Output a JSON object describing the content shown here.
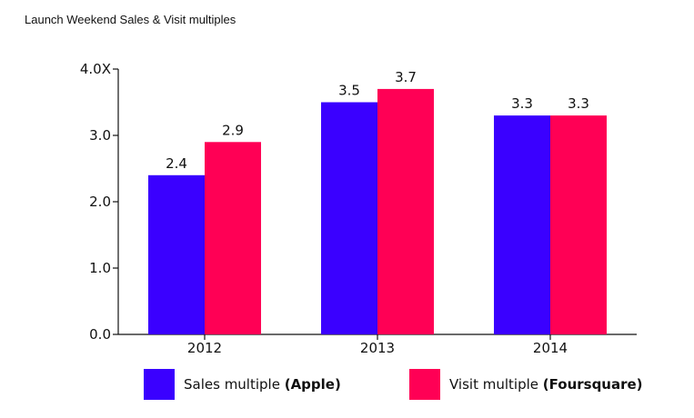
{
  "title": "Launch Weekend Sales & Visit multiples",
  "chart_data": {
    "type": "bar",
    "title": "Launch Weekend Sales & Visit multiples",
    "categories": [
      "2012",
      "2013",
      "2014"
    ],
    "series": [
      {
        "name": "Sales multiple (Apple)",
        "values": [
          2.4,
          3.5,
          3.3
        ],
        "color": "#3a00ff"
      },
      {
        "name": "Visit multiple (Foursquare)",
        "values": [
          2.9,
          3.7,
          3.3
        ],
        "color": "#ff0055"
      }
    ],
    "data_labels": [
      [
        "2.4",
        "3.5",
        "3.3"
      ],
      [
        "2.9",
        "3.7",
        "3.3"
      ]
    ],
    "ylim": [
      0,
      4
    ],
    "yticks": [
      0,
      1,
      2,
      3,
      4
    ],
    "ytick_labels": [
      "0.0",
      "1.0",
      "2.0",
      "3.0",
      "4.0X"
    ],
    "grid": false,
    "legend_position": "bottom"
  },
  "legend": {
    "items": [
      {
        "prefix": "Sales multiple ",
        "bold": "(Apple)",
        "color": "#3a00ff"
      },
      {
        "prefix": "Visit multiple ",
        "bold": "(Foursquare)",
        "color": "#ff0055"
      }
    ]
  }
}
